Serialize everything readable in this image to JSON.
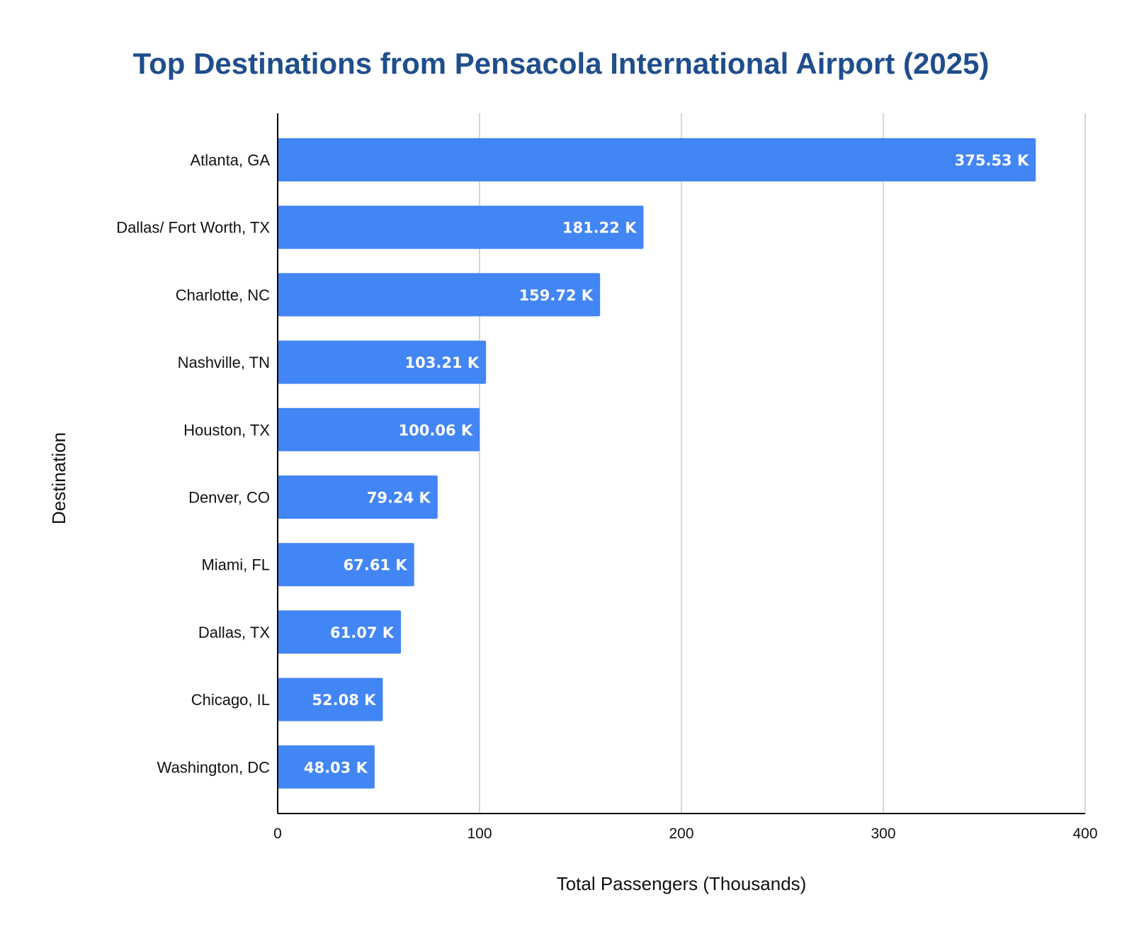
{
  "chart_data": {
    "type": "bar",
    "orientation": "horizontal",
    "title": "Top Destinations from Pensacola International Airport (2025)",
    "xlabel": "Total Passengers (Thousands)",
    "ylabel": "Destination",
    "categories": [
      "Atlanta, GA",
      "Dallas/ Fort Worth, TX",
      "Charlotte, NC",
      "Nashville, TN",
      "Houston, TX",
      "Denver, CO",
      "Miami, FL",
      "Dallas, TX",
      "Chicago, IL",
      "Washington, DC"
    ],
    "values": [
      375.53,
      181.22,
      159.72,
      103.21,
      100.06,
      79.24,
      67.61,
      61.07,
      52.08,
      48.03
    ],
    "data_labels": [
      "375.53 K",
      "181.22 K",
      "159.72 K",
      "103.21 K",
      "100.06 K",
      "79.24 K",
      "67.61 K",
      "61.07 K",
      "52.08 K",
      "48.03 K"
    ],
    "xlim": [
      0,
      400
    ],
    "xticks": [
      0,
      100,
      200,
      300,
      400
    ],
    "xtick_labels": [
      "0",
      "100",
      "200",
      "300",
      "400"
    ],
    "grid": true,
    "legend": "none",
    "bar_color": "#4285f4",
    "title_color": "#1f4e8c",
    "gridline_color": "#c8c8c8"
  }
}
